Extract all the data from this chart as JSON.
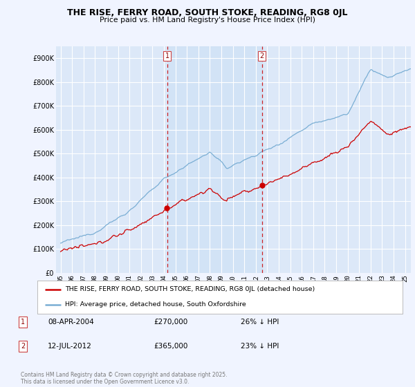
{
  "title": "THE RISE, FERRY ROAD, SOUTH STOKE, READING, RG8 0JL",
  "subtitle": "Price paid vs. HM Land Registry's House Price Index (HPI)",
  "legend_line1": "THE RISE, FERRY ROAD, SOUTH STOKE, READING, RG8 0JL (detached house)",
  "legend_line2": "HPI: Average price, detached house, South Oxfordshire",
  "transaction1_date": "08-APR-2004",
  "transaction1_price": 270000,
  "transaction1_note": "26% ↓ HPI",
  "transaction2_date": "12-JUL-2012",
  "transaction2_price": 365000,
  "transaction2_note": "23% ↓ HPI",
  "marker1_x": 2004.27,
  "marker2_x": 2012.53,
  "fig_bg_color": "#f0f4ff",
  "plot_bg_color": "#dce8f8",
  "shade_color": "#cce0f5",
  "red_color": "#cc0000",
  "blue_color": "#7aaed4",
  "vline_color": "#cc0000",
  "grid_color": "#ffffff",
  "copyright_text": "Contains HM Land Registry data © Crown copyright and database right 2025.\nThis data is licensed under the Open Government Licence v3.0.",
  "ylim": [
    0,
    950000
  ],
  "xlim": [
    1994.6,
    2025.5
  ],
  "yticks": [
    0,
    100000,
    200000,
    300000,
    400000,
    500000,
    600000,
    700000,
    800000,
    900000
  ],
  "ytick_labels": [
    "£0",
    "£100K",
    "£200K",
    "£300K",
    "£400K",
    "£500K",
    "£600K",
    "£700K",
    "£800K",
    "£900K"
  ],
  "xticks": [
    1995,
    1996,
    1997,
    1998,
    1999,
    2000,
    2001,
    2002,
    2003,
    2004,
    2005,
    2006,
    2007,
    2008,
    2009,
    2010,
    2011,
    2012,
    2013,
    2014,
    2015,
    2016,
    2017,
    2018,
    2019,
    2020,
    2021,
    2022,
    2023,
    2024,
    2025
  ],
  "xtick_labels": [
    "95",
    "96",
    "97",
    "98",
    "99",
    "00",
    "01",
    "02",
    "03",
    "04",
    "05",
    "06",
    "07",
    "08",
    "09",
    "10",
    "11",
    "12",
    "13",
    "14",
    "15",
    "16",
    "17",
    "18",
    "19",
    "20",
    "21",
    "22",
    "23",
    "24",
    "25"
  ]
}
